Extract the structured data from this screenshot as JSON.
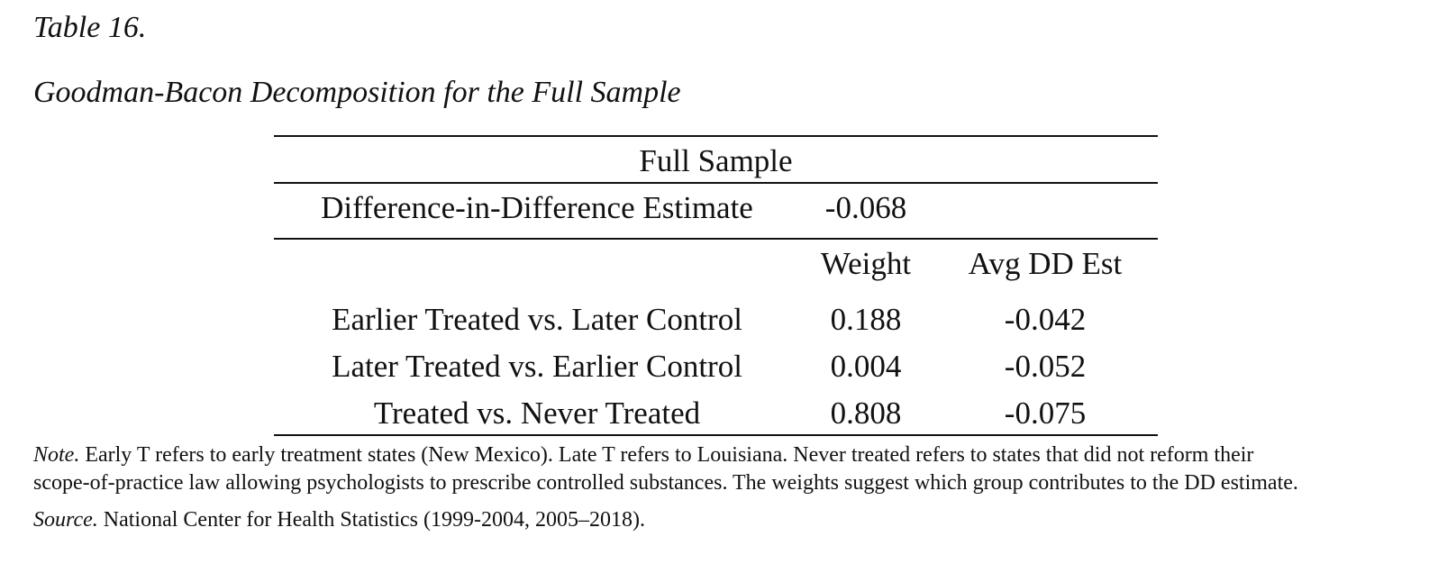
{
  "caption": {
    "table_number": "Table 16.",
    "title": "Goodman-Bacon Decomposition for the Full Sample"
  },
  "table": {
    "panel_header": "Full Sample",
    "dd_row": {
      "label": "Difference-in-Difference Estimate",
      "value": "-0.068"
    },
    "columns": {
      "weight": "Weight",
      "avg_dd": "Avg DD Est"
    },
    "rows": [
      {
        "label": "Earlier Treated vs. Later Control",
        "weight": "0.188",
        "avg_dd": "-0.042"
      },
      {
        "label": "Later Treated vs. Earlier Control",
        "weight": "0.004",
        "avg_dd": "-0.052"
      },
      {
        "label": "Treated vs. Never Treated",
        "weight": "0.808",
        "avg_dd": "-0.075"
      }
    ]
  },
  "notes": {
    "note_label": "Note.",
    "note_line1": "Early T refers to early treatment states (New Mexico). Late T refers to Louisiana. Never treated refers to states that did not reform their",
    "note_line2": "scope-of-practice law allowing psychologists to prescribe controlled substances. The weights suggest which group contributes to the DD estimate.",
    "source_label": "Source.",
    "source_text": "National Center for Health Statistics (1999-2004, 2005–2018)."
  }
}
